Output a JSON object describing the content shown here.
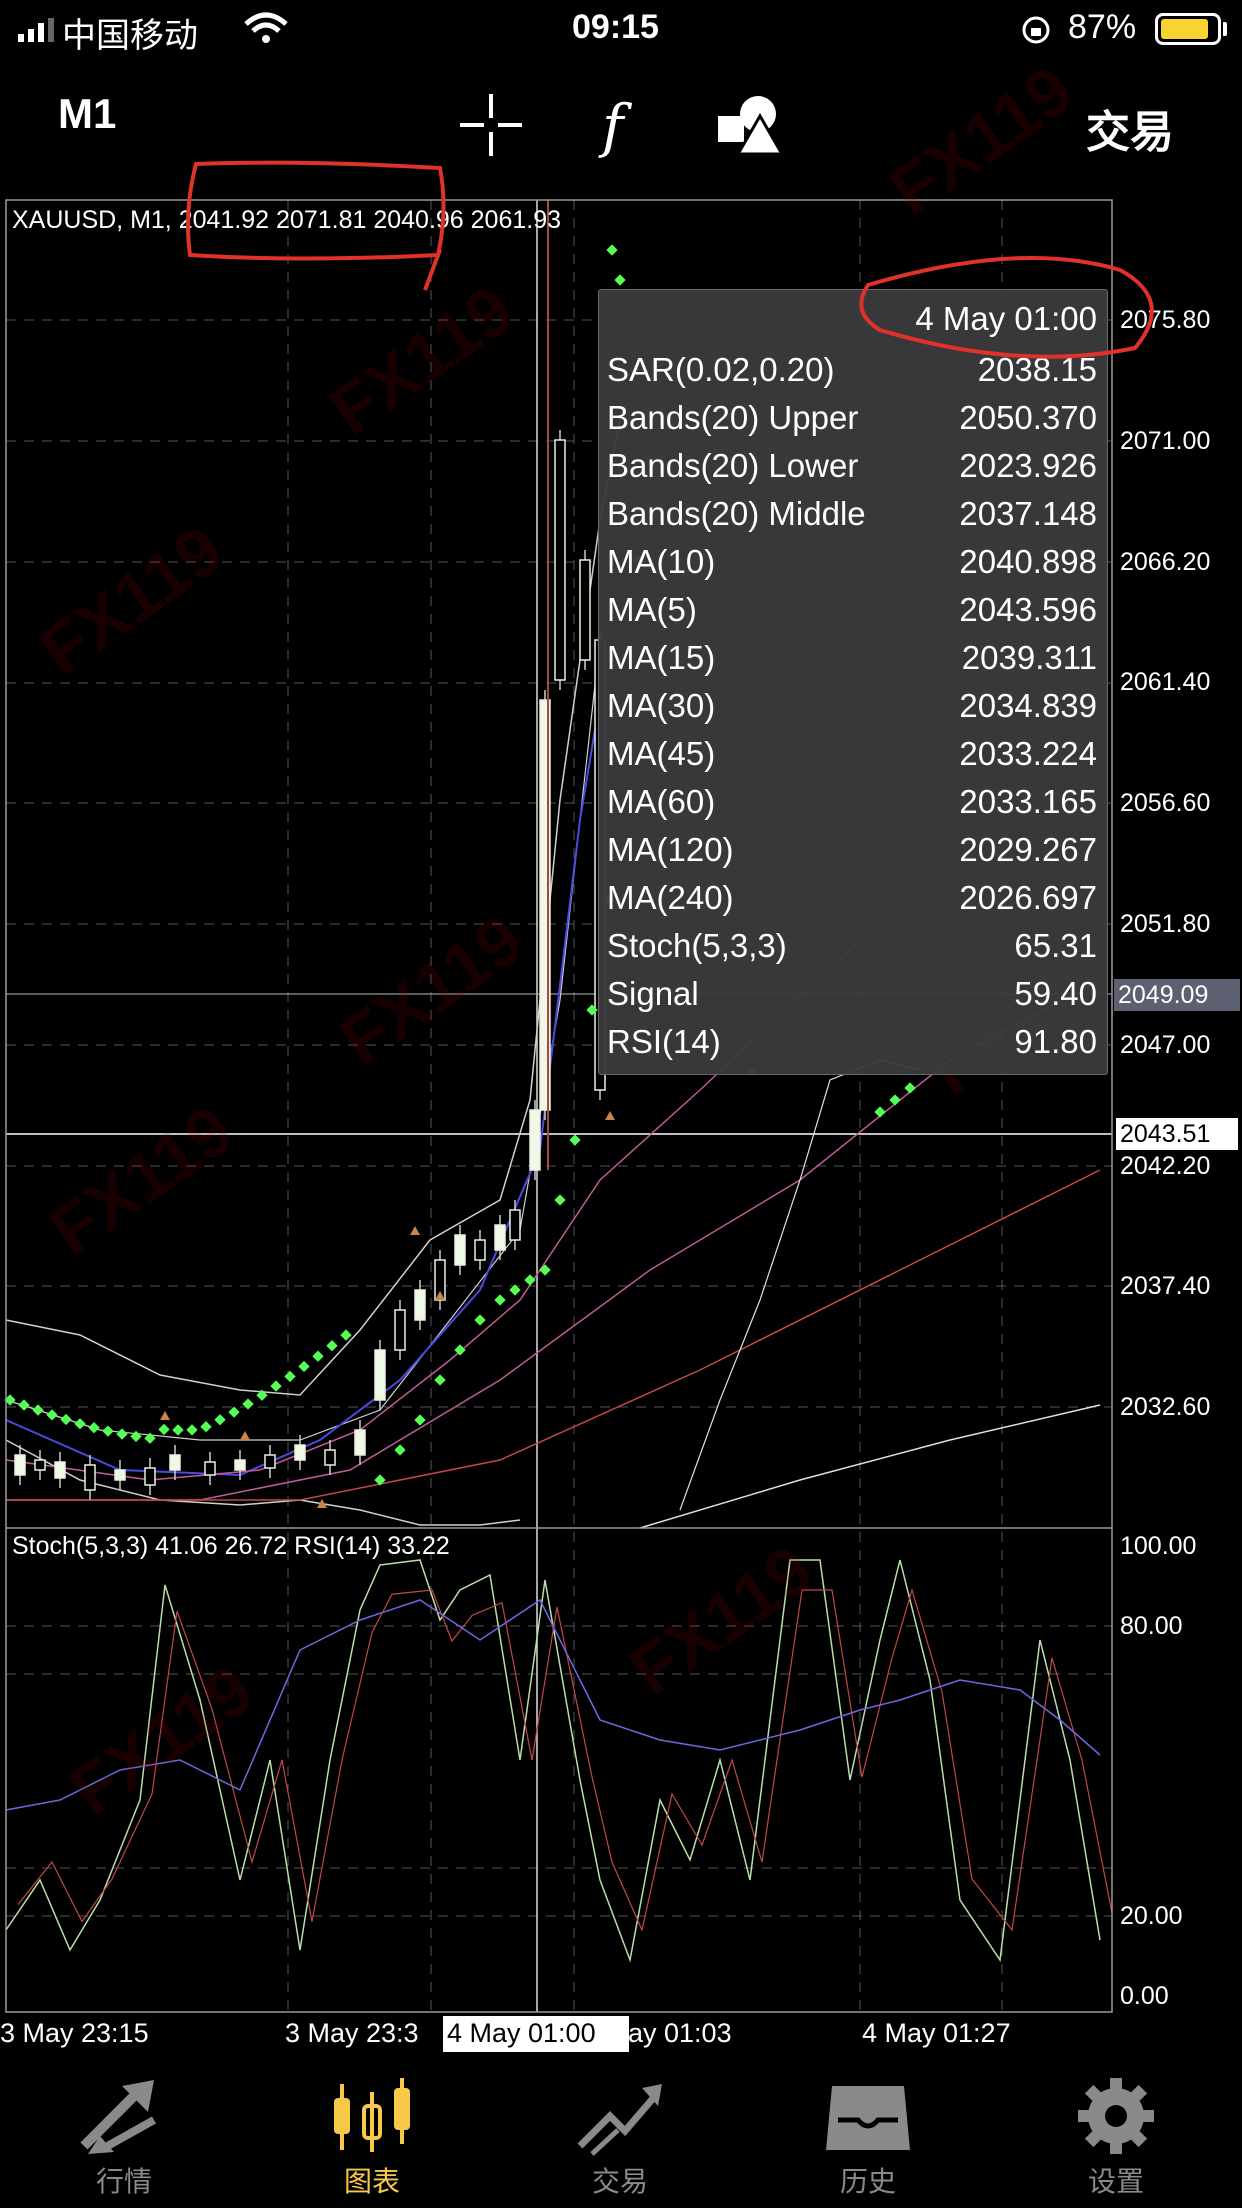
{
  "status_bar": {
    "carrier": "中国移动",
    "time": "09:15",
    "battery": "87%",
    "battery_level": 0.87
  },
  "toolbar": {
    "timeframe": "M1",
    "trade_label": "交易",
    "icons": [
      "crosshair-icon",
      "function-icon",
      "objects-icon"
    ]
  },
  "chart_header": {
    "label": "XAUUSD, M1, 2041.92 2071.81 2040.96 2061.93"
  },
  "tooltip": {
    "date": "4 May 01:00",
    "rows": [
      {
        "label": "SAR(0.02,0.20)",
        "value": "2038.15"
      },
      {
        "label": "Bands(20) Upper",
        "value": "2050.370"
      },
      {
        "label": "Bands(20) Lower",
        "value": "2023.926"
      },
      {
        "label": "Bands(20) Middle",
        "value": "2037.148"
      },
      {
        "label": "MA(10)",
        "value": "2040.898"
      },
      {
        "label": "MA(5)",
        "value": "2043.596"
      },
      {
        "label": "MA(15)",
        "value": "2039.311"
      },
      {
        "label": "MA(30)",
        "value": "2034.839"
      },
      {
        "label": "MA(45)",
        "value": "2033.224"
      },
      {
        "label": "MA(60)",
        "value": "2033.165"
      },
      {
        "label": "MA(120)",
        "value": "2029.267"
      },
      {
        "label": "MA(240)",
        "value": "2026.697"
      },
      {
        "label": "Stoch(5,3,3)",
        "value": "65.31"
      },
      {
        "label": "Signal",
        "value": "59.40"
      },
      {
        "label": "RSI(14)",
        "value": "91.80"
      }
    ]
  },
  "price_axis": {
    "labels": [
      "2075.80",
      "2071.00",
      "2066.20",
      "2061.40",
      "2056.60",
      "2051.80",
      "2047.00",
      "2042.20",
      "2037.40",
      "2032.60"
    ],
    "crosshair_price": "2049.09",
    "current_price": "2043.51"
  },
  "indicator": {
    "label": "Stoch(5,3,3) 41.06 26.72 RSI(14) 33.22",
    "axis_labels": [
      "100.00",
      "80.00",
      "20.00",
      "0.00"
    ]
  },
  "time_axis": {
    "labels": [
      "3 May 23:15",
      "3 May 23:3",
      "ay 01:03",
      "4 May 01:27"
    ],
    "crosshair_time": "4 May 01:00"
  },
  "tab_bar": {
    "items": [
      {
        "label": "行情",
        "icon": "quotes-icon",
        "active": false
      },
      {
        "label": "图表",
        "icon": "chart-icon",
        "active": true
      },
      {
        "label": "交易",
        "icon": "trade-icon",
        "active": false
      },
      {
        "label": "历史",
        "icon": "history-icon",
        "active": false
      },
      {
        "label": "设置",
        "icon": "settings-icon",
        "active": false
      }
    ]
  },
  "colors": {
    "background": "#000000",
    "accent": "#f7c948",
    "sar": "#55ff55",
    "annotation": "#e0322a",
    "tooltip_bg": "#3a3a3c"
  }
}
